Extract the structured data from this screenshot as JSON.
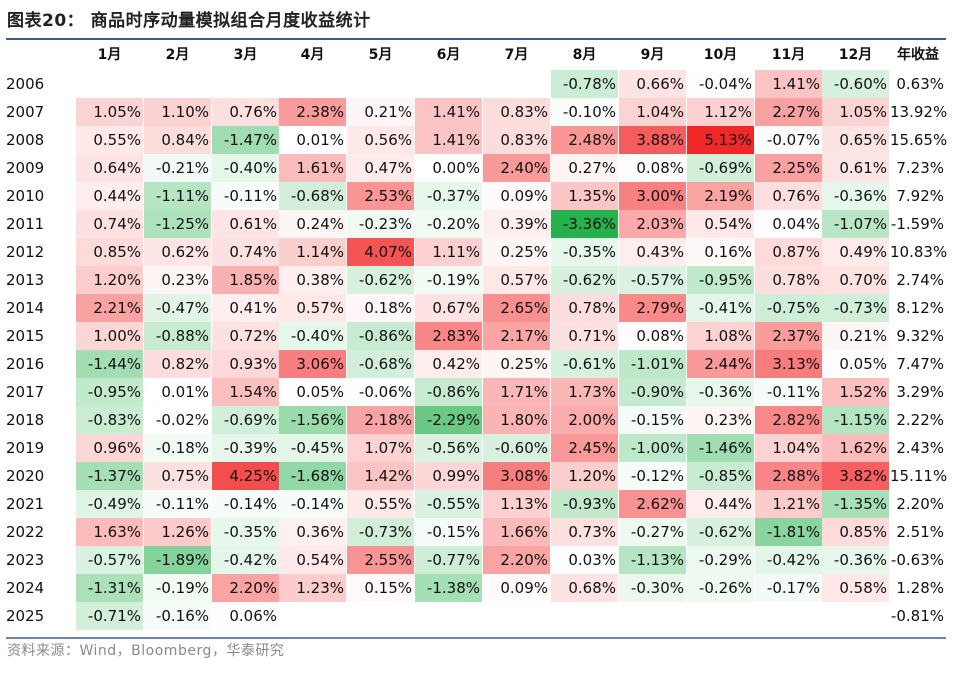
{
  "title": "图表20：  商品时序动量模拟组合月度收益统计",
  "source": "资料来源：Wind，Bloomberg，华泰研究",
  "colors": {
    "positive": "#f2282b",
    "negative": "#25b14c",
    "rule": "#3a5a8c"
  },
  "headers": [
    "",
    "1月",
    "2月",
    "3月",
    "4月",
    "5月",
    "6月",
    "7月",
    "8月",
    "9月",
    "10月",
    "11月",
    "12月",
    "年收益"
  ],
  "rows": [
    {
      "year": "2006",
      "months": [
        "",
        "",
        "",
        "",
        "",
        "",
        "",
        "-0.78%",
        "0.66%",
        "-0.04%",
        "1.41%",
        "-0.60%"
      ],
      "annual": "0.63%"
    },
    {
      "year": "2007",
      "months": [
        "1.05%",
        "1.10%",
        "0.76%",
        "2.38%",
        "0.21%",
        "1.41%",
        "0.83%",
        "-0.10%",
        "1.04%",
        "1.12%",
        "2.27%",
        "1.05%"
      ],
      "annual": "13.92%"
    },
    {
      "year": "2008",
      "months": [
        "0.55%",
        "0.84%",
        "-1.47%",
        "0.01%",
        "0.56%",
        "1.41%",
        "0.83%",
        "2.48%",
        "3.88%",
        "5.13%",
        "-0.07%",
        "0.65%"
      ],
      "annual": "15.65%"
    },
    {
      "year": "2009",
      "months": [
        "0.64%",
        "-0.21%",
        "-0.40%",
        "1.61%",
        "0.47%",
        "0.00%",
        "2.40%",
        "0.27%",
        "0.08%",
        "-0.69%",
        "2.25%",
        "0.61%"
      ],
      "annual": "7.23%"
    },
    {
      "year": "2010",
      "months": [
        "0.44%",
        "-1.11%",
        "-0.11%",
        "-0.68%",
        "2.53%",
        "-0.37%",
        "0.09%",
        "1.35%",
        "3.00%",
        "2.19%",
        "0.76%",
        "-0.36%"
      ],
      "annual": "7.92%"
    },
    {
      "year": "2011",
      "months": [
        "0.74%",
        "-1.25%",
        "0.61%",
        "0.24%",
        "-0.23%",
        "-0.20%",
        "0.39%",
        "-3.36%",
        "2.03%",
        "0.54%",
        "0.04%",
        "-1.07%"
      ],
      "annual": "-1.59%"
    },
    {
      "year": "2012",
      "months": [
        "0.85%",
        "0.62%",
        "0.74%",
        "1.14%",
        "4.07%",
        "1.11%",
        "0.25%",
        "-0.35%",
        "0.43%",
        "0.16%",
        "0.87%",
        "0.49%"
      ],
      "annual": "10.83%"
    },
    {
      "year": "2013",
      "months": [
        "1.20%",
        "0.23%",
        "1.85%",
        "0.38%",
        "-0.62%",
        "-0.19%",
        "0.57%",
        "-0.62%",
        "-0.57%",
        "-0.95%",
        "0.78%",
        "0.70%"
      ],
      "annual": "2.74%"
    },
    {
      "year": "2014",
      "months": [
        "2.21%",
        "-0.47%",
        "0.41%",
        "0.57%",
        "0.18%",
        "0.67%",
        "2.65%",
        "0.78%",
        "2.79%",
        "-0.41%",
        "-0.75%",
        "-0.73%"
      ],
      "annual": "8.12%"
    },
    {
      "year": "2015",
      "months": [
        "1.00%",
        "-0.88%",
        "0.72%",
        "-0.40%",
        "-0.86%",
        "2.83%",
        "2.17%",
        "0.71%",
        "0.08%",
        "1.08%",
        "2.37%",
        "0.21%"
      ],
      "annual": "9.32%"
    },
    {
      "year": "2016",
      "months": [
        "-1.44%",
        "0.82%",
        "0.93%",
        "3.06%",
        "-0.68%",
        "0.42%",
        "0.25%",
        "-0.61%",
        "-1.01%",
        "2.44%",
        "3.13%",
        "0.05%"
      ],
      "annual": "7.47%"
    },
    {
      "year": "2017",
      "months": [
        "-0.95%",
        "0.01%",
        "1.54%",
        "0.05%",
        "-0.06%",
        "-0.86%",
        "1.71%",
        "1.73%",
        "-0.90%",
        "-0.36%",
        "-0.11%",
        "1.52%"
      ],
      "annual": "3.29%"
    },
    {
      "year": "2018",
      "months": [
        "-0.83%",
        "-0.02%",
        "-0.69%",
        "-1.56%",
        "2.18%",
        "-2.29%",
        "1.80%",
        "2.00%",
        "-0.15%",
        "0.23%",
        "2.82%",
        "-1.15%"
      ],
      "annual": "2.22%"
    },
    {
      "year": "2019",
      "months": [
        "0.96%",
        "-0.18%",
        "-0.39%",
        "-0.45%",
        "1.07%",
        "-0.56%",
        "-0.60%",
        "2.45%",
        "-1.00%",
        "-1.46%",
        "1.04%",
        "1.62%"
      ],
      "annual": "2.43%"
    },
    {
      "year": "2020",
      "months": [
        "-1.37%",
        "0.75%",
        "4.25%",
        "-1.68%",
        "1.42%",
        "0.99%",
        "3.08%",
        "1.20%",
        "-0.12%",
        "-0.85%",
        "2.88%",
        "3.82%"
      ],
      "annual": "15.11%"
    },
    {
      "year": "2021",
      "months": [
        "-0.49%",
        "-0.11%",
        "-0.14%",
        "-0.14%",
        "0.55%",
        "-0.55%",
        "1.13%",
        "-0.93%",
        "2.62%",
        "0.44%",
        "1.21%",
        "-1.35%"
      ],
      "annual": "2.20%"
    },
    {
      "year": "2022",
      "months": [
        "1.63%",
        "1.26%",
        "-0.35%",
        "0.36%",
        "-0.73%",
        "-0.15%",
        "1.66%",
        "0.73%",
        "-0.27%",
        "-0.62%",
        "-1.81%",
        "0.85%"
      ],
      "annual": "2.51%"
    },
    {
      "year": "2023",
      "months": [
        "-0.57%",
        "-1.89%",
        "-0.42%",
        "0.54%",
        "2.55%",
        "-0.77%",
        "2.20%",
        "0.03%",
        "-1.13%",
        "-0.29%",
        "-0.42%",
        "-0.36%"
      ],
      "annual": "-0.63%"
    },
    {
      "year": "2024",
      "months": [
        "-1.31%",
        "-0.19%",
        "2.20%",
        "1.23%",
        "0.15%",
        "-1.38%",
        "0.09%",
        "0.68%",
        "-0.30%",
        "-0.26%",
        "-0.17%",
        "0.58%"
      ],
      "annual": "1.28%"
    },
    {
      "year": "2025",
      "months": [
        "-0.71%",
        "-0.16%",
        "0.06%",
        "",
        "",
        "",
        "",
        "",
        "",
        "",
        "",
        ""
      ],
      "annual": "-0.81%"
    }
  ]
}
